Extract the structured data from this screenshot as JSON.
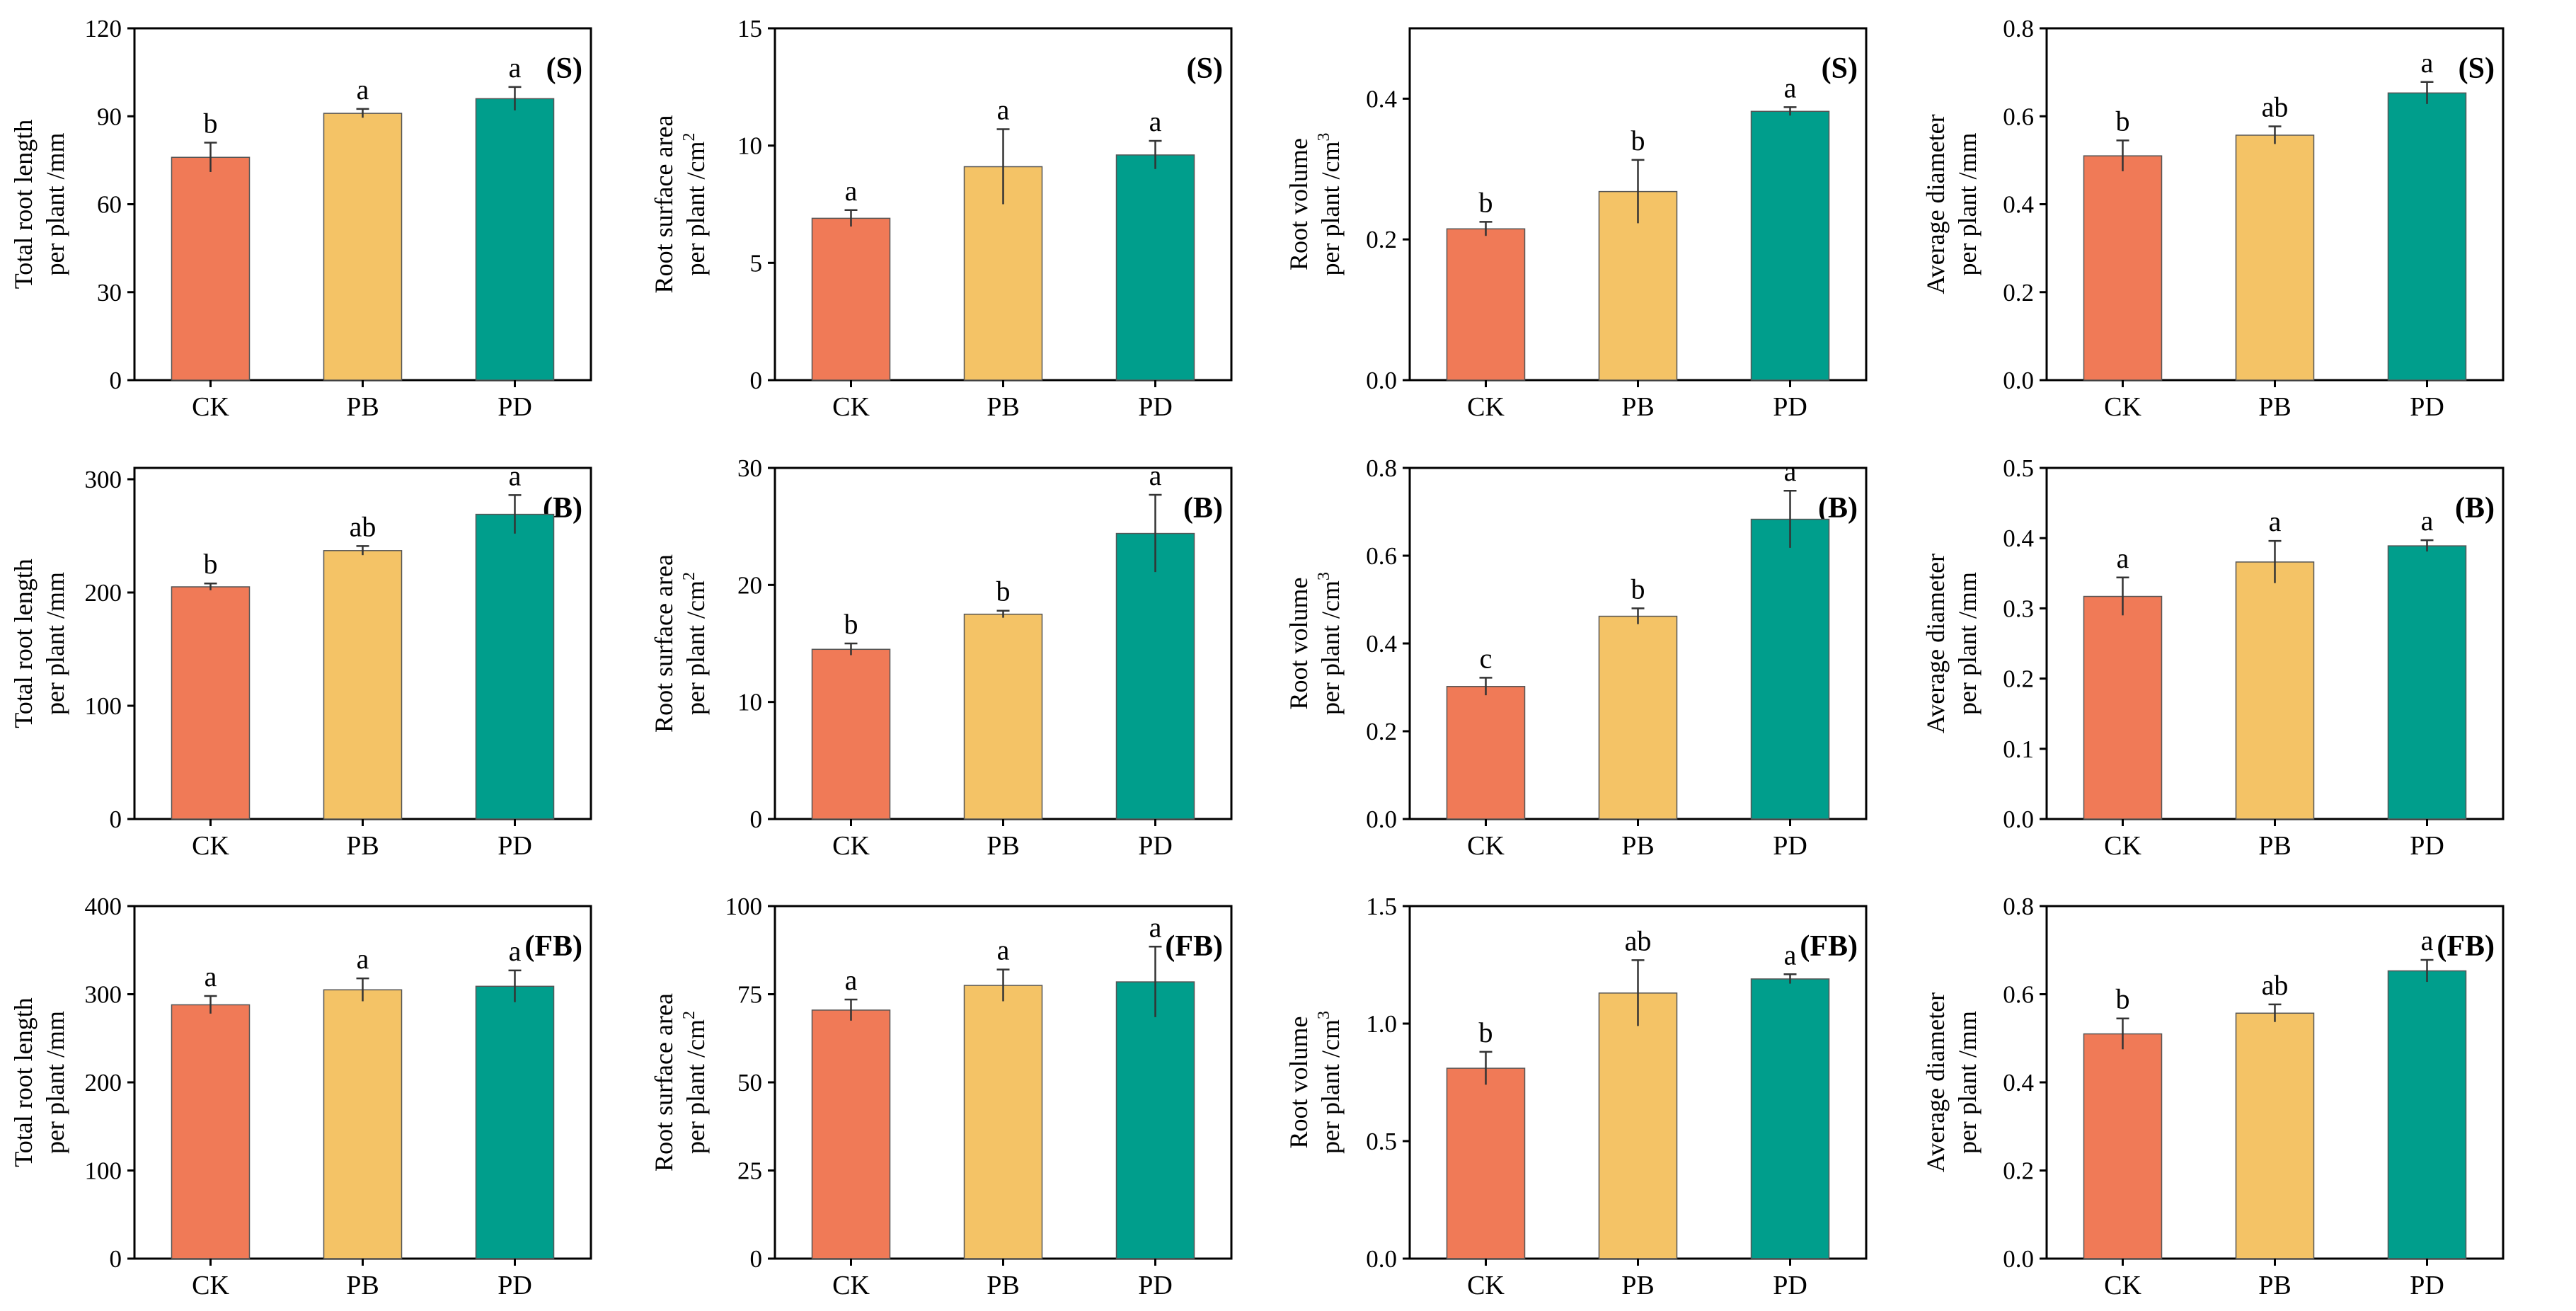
{
  "colors": {
    "CK": "#F07A57",
    "PB": "#F4C366",
    "PD": "#009E8C"
  },
  "chart_data": [
    {
      "type": "bar",
      "panel": "(S)",
      "ylabel_lines": [
        "Total root length",
        "per plant /mm"
      ],
      "ylabel_sup": "",
      "ylim": [
        0,
        120
      ],
      "yticks": [
        "0",
        "30",
        "60",
        "90",
        "120"
      ],
      "categories": [
        "CK",
        "PB",
        "PD"
      ],
      "values": [
        76,
        91,
        96
      ],
      "errors": [
        5,
        1.5,
        4
      ],
      "letters": [
        "b",
        "a",
        "a"
      ]
    },
    {
      "type": "bar",
      "panel": "(S)",
      "ylabel_lines": [
        "Root surface area",
        "per plant /cm"
      ],
      "ylabel_sup": "2",
      "ylim": [
        0,
        15
      ],
      "yticks": [
        "0",
        "5",
        "10",
        "15"
      ],
      "categories": [
        "CK",
        "PB",
        "PD"
      ],
      "values": [
        6.9,
        9.1,
        9.6
      ],
      "errors": [
        0.35,
        1.6,
        0.6
      ],
      "letters": [
        "a",
        "a",
        "a"
      ]
    },
    {
      "type": "bar",
      "panel": "(S)",
      "ylabel_lines": [
        "Root volume",
        "per plant /cm"
      ],
      "ylabel_sup": "3",
      "ylim": [
        0,
        0.5
      ],
      "yticks": [
        "0.0",
        "0.2",
        "0.4"
      ],
      "categories": [
        "CK",
        "PB",
        "PD"
      ],
      "values": [
        0.215,
        0.268,
        0.382
      ],
      "errors": [
        0.01,
        0.045,
        0.006
      ],
      "letters": [
        "b",
        "b",
        "a"
      ]
    },
    {
      "type": "bar",
      "panel": "(S)",
      "ylabel_lines": [
        "Average diameter",
        "per plant /mm"
      ],
      "ylabel_sup": "",
      "ylim": [
        0,
        0.8
      ],
      "yticks": [
        "0.0",
        "0.2",
        "0.4",
        "0.6",
        "0.8"
      ],
      "categories": [
        "CK",
        "PB",
        "PD"
      ],
      "values": [
        0.51,
        0.557,
        0.653
      ],
      "errors": [
        0.035,
        0.02,
        0.025
      ],
      "letters": [
        "b",
        "ab",
        "a"
      ]
    },
    {
      "type": "bar",
      "panel": "(B)",
      "ylabel_lines": [
        "Total root length",
        "per plant /mm"
      ],
      "ylabel_sup": "",
      "ylim": [
        0,
        310
      ],
      "yticks": [
        "0",
        "100",
        "200",
        "300"
      ],
      "categories": [
        "CK",
        "PB",
        "PD"
      ],
      "values": [
        205,
        237,
        269
      ],
      "errors": [
        3,
        4,
        17
      ],
      "letters": [
        "b",
        "ab",
        "a"
      ]
    },
    {
      "type": "bar",
      "panel": "(B)",
      "ylabel_lines": [
        "Root surface area",
        "per plant /cm"
      ],
      "ylabel_sup": "2",
      "ylim": [
        0,
        30
      ],
      "yticks": [
        "0",
        "10",
        "20",
        "30"
      ],
      "categories": [
        "CK",
        "PB",
        "PD"
      ],
      "values": [
        14.5,
        17.5,
        24.4
      ],
      "errors": [
        0.5,
        0.3,
        3.3
      ],
      "letters": [
        "b",
        "b",
        "a"
      ]
    },
    {
      "type": "bar",
      "panel": "(B)",
      "ylabel_lines": [
        "Root volume",
        "per plant /cm"
      ],
      "ylabel_sup": "3",
      "ylim": [
        0,
        0.8
      ],
      "yticks": [
        "0.0",
        "0.2",
        "0.4",
        "0.6",
        "0.8"
      ],
      "categories": [
        "CK",
        "PB",
        "PD"
      ],
      "values": [
        0.302,
        0.462,
        0.683
      ],
      "errors": [
        0.02,
        0.018,
        0.065
      ],
      "letters": [
        "c",
        "b",
        "a"
      ]
    },
    {
      "type": "bar",
      "panel": "(B)",
      "ylabel_lines": [
        "Average diameter",
        "per plant /mm"
      ],
      "ylabel_sup": "",
      "ylim": [
        0,
        0.5
      ],
      "yticks": [
        "0.0",
        "0.1",
        "0.2",
        "0.3",
        "0.4",
        "0.5"
      ],
      "categories": [
        "CK",
        "PB",
        "PD"
      ],
      "values": [
        0.317,
        0.366,
        0.389
      ],
      "errors": [
        0.027,
        0.03,
        0.008
      ],
      "letters": [
        "a",
        "a",
        "a"
      ]
    },
    {
      "type": "bar",
      "panel": "(FB)",
      "ylabel_lines": [
        "Total root length",
        "per plant /mm"
      ],
      "ylabel_sup": "",
      "ylim": [
        0,
        400
      ],
      "yticks": [
        "0",
        "100",
        "200",
        "300",
        "400"
      ],
      "categories": [
        "CK",
        "PB",
        "PD"
      ],
      "values": [
        288,
        305,
        309
      ],
      "errors": [
        10,
        13,
        18
      ],
      "letters": [
        "a",
        "a",
        "a"
      ]
    },
    {
      "type": "bar",
      "panel": "(FB)",
      "ylabel_lines": [
        "Root surface area",
        "per plant /cm"
      ],
      "ylabel_sup": "2",
      "ylim": [
        0,
        100
      ],
      "yticks": [
        "0",
        "25",
        "50",
        "75",
        "100"
      ],
      "categories": [
        "CK",
        "PB",
        "PD"
      ],
      "values": [
        70.5,
        77.5,
        78.5
      ],
      "errors": [
        3,
        4.5,
        10
      ],
      "letters": [
        "a",
        "a",
        "a"
      ]
    },
    {
      "type": "bar",
      "panel": "(FB)",
      "ylabel_lines": [
        "Root volume",
        "per plant /cm"
      ],
      "ylabel_sup": "3",
      "ylim": [
        0,
        1.5
      ],
      "yticks": [
        "0.0",
        "0.5",
        "1.0",
        "1.5"
      ],
      "categories": [
        "CK",
        "PB",
        "PD"
      ],
      "values": [
        0.81,
        1.13,
        1.19
      ],
      "errors": [
        0.07,
        0.14,
        0.02
      ],
      "letters": [
        "b",
        "ab",
        "a"
      ]
    },
    {
      "type": "bar",
      "panel": "(FB)",
      "ylabel_lines": [
        "Average diameter",
        "per plant /mm"
      ],
      "ylabel_sup": "",
      "ylim": [
        0,
        0.8
      ],
      "yticks": [
        "0.0",
        "0.2",
        "0.4",
        "0.6",
        "0.8"
      ],
      "categories": [
        "CK",
        "PB",
        "PD"
      ],
      "values": [
        0.51,
        0.557,
        0.653
      ],
      "errors": [
        0.035,
        0.02,
        0.025
      ],
      "letters": [
        "b",
        "ab",
        "a"
      ]
    }
  ]
}
